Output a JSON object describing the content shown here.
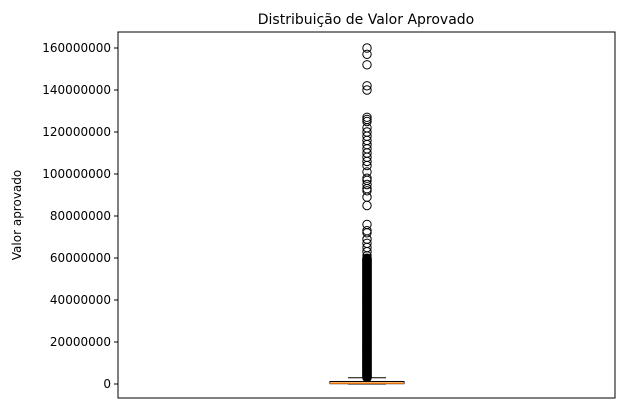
{
  "chart_data": {
    "type": "boxplot",
    "title": "Distribuição de Valor Aprovado",
    "xlabel": "",
    "ylabel": "Valor aprovado",
    "ylim": [
      -8000000,
      168000000
    ],
    "yticks": [
      0,
      20000000,
      40000000,
      60000000,
      80000000,
      100000000,
      120000000,
      140000000,
      160000000
    ],
    "ytick_labels": [
      "0",
      "20000000",
      "40000000",
      "60000000",
      "80000000",
      "100000000",
      "120000000",
      "140000000",
      "160000000"
    ],
    "x_ticks_visible": false,
    "grid": false,
    "legend": "none",
    "box": {
      "whisker_low": 0,
      "q1": 150000,
      "median": 400000,
      "q3": 1200000,
      "whisker_high": 3000000,
      "median_color": "#ff7f0e"
    },
    "outliers": {
      "dense_band": [
        3000000,
        60000000
      ],
      "sparse_values": [
        160000000,
        157000000,
        152000000,
        142000000,
        140000000,
        127000000,
        126000000,
        125000000,
        122000000,
        120000000,
        118000000,
        116000000,
        114000000,
        112000000,
        110000000,
        108000000,
        106000000,
        104000000,
        101000000,
        98000000,
        97000000,
        95000000,
        93000000,
        92000000,
        89000000,
        85000000,
        76000000,
        73000000,
        72000000,
        69000000,
        67000000,
        65000000,
        63000000,
        61000000
      ]
    }
  }
}
